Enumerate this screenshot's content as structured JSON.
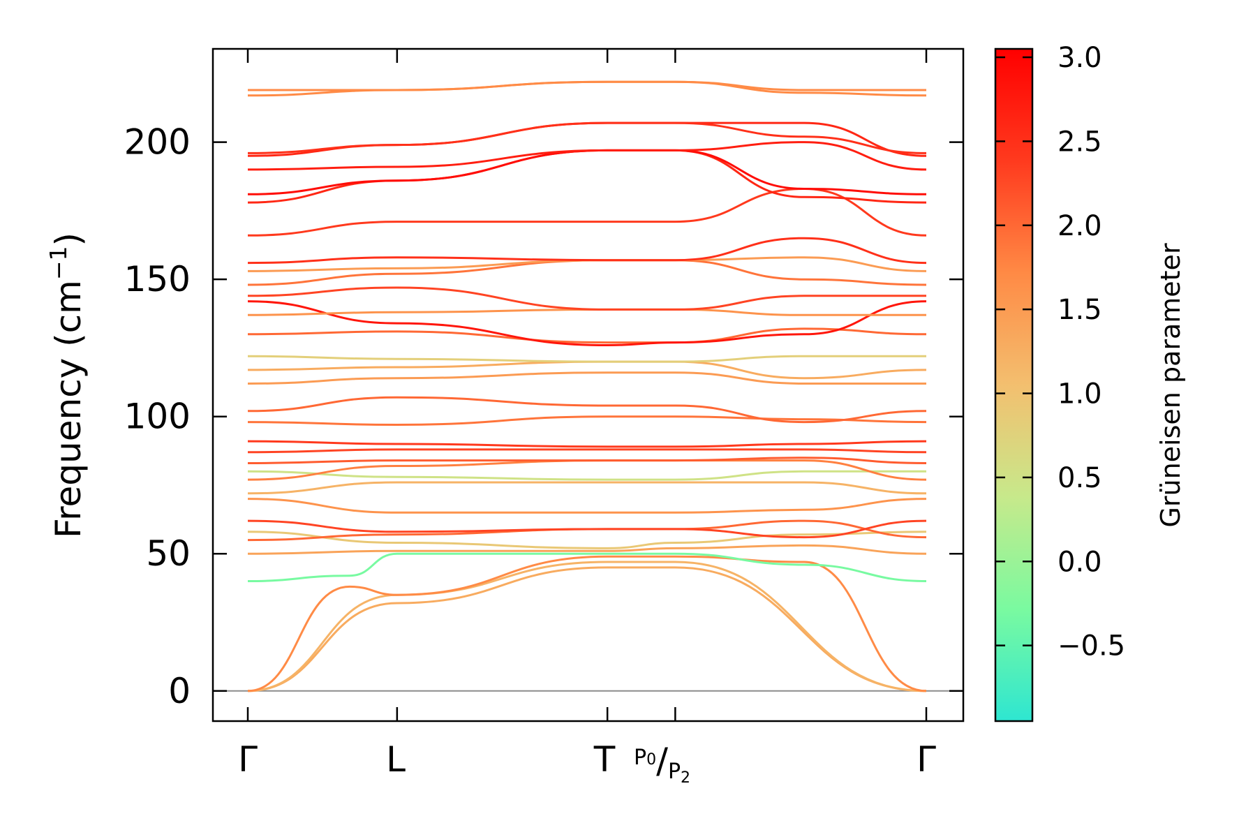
{
  "chart_data": {
    "type": "line",
    "title": "",
    "xlabel": "",
    "ylabel": "Frequency (cm",
    "ylabel_unit_sup": "−1",
    "ylabel_close": ")",
    "ylim": [
      -11,
      234
    ],
    "yticks": [
      0,
      50,
      100,
      150,
      200
    ],
    "ytick_labels": [
      "0",
      "50",
      "100",
      "150",
      "200"
    ],
    "x_segment_lengths": [
      0.22,
      0.31,
      0.1,
      0.37
    ],
    "high_symmetry_points": [
      {
        "label": "Γ",
        "x": 0
      },
      {
        "label": "L",
        "x": 0.22
      },
      {
        "label": "T",
        "x": 0.53
      },
      {
        "label": "P0/P2",
        "x": 0.63
      },
      {
        "label": "Γ",
        "x": 1.0
      }
    ],
    "special_labels": {
      "gamma_left": "Γ",
      "l": "L",
      "t": "T",
      "p0": "P",
      "p0_sub": "0",
      "slash": "/",
      "p2": "P",
      "p2_sub": "2",
      "gamma_right": "Γ"
    },
    "zero_line": {
      "y": 0,
      "color": "#8c8c8c"
    },
    "colorbar": {
      "label": "Grüneisen parameter",
      "range": [
        -0.95,
        3.05
      ],
      "ticks": [
        3.0,
        2.5,
        2.0,
        1.5,
        1.0,
        0.5,
        0.0,
        -0.5
      ],
      "tick_labels": [
        "3.0",
        "2.5",
        "2.0",
        "1.5",
        "1.0",
        "0.5",
        "0.0",
        "−0.5"
      ],
      "colormap": "rainbow-upper",
      "stops": [
        "#2ee6d1",
        "#7afaa0",
        "#c7e98b",
        "#f3bf6f",
        "#ff8a45",
        "#ff3a1e",
        "#ff0000"
      ]
    },
    "series": [
      {
        "g": 1.3,
        "points": [
          [
            0,
            0
          ],
          [
            0.22,
            32
          ],
          [
            0.53,
            45
          ],
          [
            0.63,
            45
          ],
          [
            1.0,
            0
          ]
        ]
      },
      {
        "g": 1.2,
        "points": [
          [
            0,
            0
          ],
          [
            0.22,
            35
          ],
          [
            0.53,
            47
          ],
          [
            0.63,
            47
          ],
          [
            1.0,
            0
          ]
        ]
      },
      {
        "g": 1.7,
        "points": [
          [
            0,
            0
          ],
          [
            0.15,
            38
          ],
          [
            0.22,
            35
          ],
          [
            0.53,
            49
          ],
          [
            0.63,
            49
          ],
          [
            0.82,
            47
          ],
          [
            1.0,
            0
          ]
        ]
      },
      {
        "g": -0.3,
        "points": [
          [
            0,
            40
          ],
          [
            0.15,
            42
          ],
          [
            0.22,
            50
          ],
          [
            0.53,
            50
          ],
          [
            0.63,
            50
          ],
          [
            0.82,
            46
          ],
          [
            1.0,
            40
          ]
        ]
      },
      {
        "g": 1.4,
        "points": [
          [
            0,
            50
          ],
          [
            0.22,
            51
          ],
          [
            0.53,
            51
          ],
          [
            0.63,
            52
          ],
          [
            0.82,
            53
          ],
          [
            1.0,
            50
          ]
        ]
      },
      {
        "g": 0.9,
        "points": [
          [
            0,
            58
          ],
          [
            0.22,
            54
          ],
          [
            0.53,
            52
          ],
          [
            0.63,
            54
          ],
          [
            0.82,
            57
          ],
          [
            1.0,
            58
          ]
        ]
      },
      {
        "g": 2.0,
        "points": [
          [
            0,
            55
          ],
          [
            0.22,
            57
          ],
          [
            0.53,
            59
          ],
          [
            0.63,
            59
          ],
          [
            0.82,
            62
          ],
          [
            1.0,
            56
          ]
        ]
      },
      {
        "g": 2.3,
        "points": [
          [
            0,
            62
          ],
          [
            0.22,
            58
          ],
          [
            0.53,
            59
          ],
          [
            0.63,
            59
          ],
          [
            0.82,
            56
          ],
          [
            1.0,
            62
          ]
        ]
      },
      {
        "g": 1.6,
        "points": [
          [
            0,
            70
          ],
          [
            0.22,
            65
          ],
          [
            0.53,
            65
          ],
          [
            0.63,
            65
          ],
          [
            0.82,
            66
          ],
          [
            1.0,
            70
          ]
        ]
      },
      {
        "g": 1.2,
        "points": [
          [
            0,
            72
          ],
          [
            0.22,
            76
          ],
          [
            0.53,
            76
          ],
          [
            0.63,
            76
          ],
          [
            0.82,
            76
          ],
          [
            1.0,
            72
          ]
        ]
      },
      {
        "g": 0.5,
        "points": [
          [
            0,
            80
          ],
          [
            0.22,
            78
          ],
          [
            0.53,
            77
          ],
          [
            0.63,
            77
          ],
          [
            0.82,
            80
          ],
          [
            1.0,
            80
          ]
        ]
      },
      {
        "g": 1.8,
        "points": [
          [
            0,
            77
          ],
          [
            0.22,
            82
          ],
          [
            0.53,
            84
          ],
          [
            0.63,
            84
          ],
          [
            0.82,
            84
          ],
          [
            1.0,
            77
          ]
        ]
      },
      {
        "g": 2.1,
        "points": [
          [
            0,
            83
          ],
          [
            0.22,
            84
          ],
          [
            0.53,
            84
          ],
          [
            0.63,
            84
          ],
          [
            0.82,
            85
          ],
          [
            1.0,
            83
          ]
        ]
      },
      {
        "g": 2.3,
        "points": [
          [
            0,
            87
          ],
          [
            0.22,
            88
          ],
          [
            0.53,
            88
          ],
          [
            0.63,
            88
          ],
          [
            0.82,
            88
          ],
          [
            1.0,
            87
          ]
        ]
      },
      {
        "g": 2.4,
        "points": [
          [
            0,
            91
          ],
          [
            0.22,
            90
          ],
          [
            0.53,
            89
          ],
          [
            0.63,
            89
          ],
          [
            0.82,
            90
          ],
          [
            1.0,
            91
          ]
        ]
      },
      {
        "g": 1.9,
        "points": [
          [
            0,
            98
          ],
          [
            0.22,
            97
          ],
          [
            0.53,
            100
          ],
          [
            0.63,
            100
          ],
          [
            0.82,
            99
          ],
          [
            1.0,
            98
          ]
        ]
      },
      {
        "g": 2.0,
        "points": [
          [
            0,
            102
          ],
          [
            0.22,
            107
          ],
          [
            0.53,
            104
          ],
          [
            0.63,
            104
          ],
          [
            0.82,
            98
          ],
          [
            1.0,
            102
          ]
        ]
      },
      {
        "g": 1.5,
        "points": [
          [
            0,
            112
          ],
          [
            0.22,
            114
          ],
          [
            0.53,
            116
          ],
          [
            0.63,
            116
          ],
          [
            0.82,
            112
          ],
          [
            1.0,
            112
          ]
        ]
      },
      {
        "g": 1.3,
        "points": [
          [
            0,
            117
          ],
          [
            0.22,
            118
          ],
          [
            0.53,
            120
          ],
          [
            0.63,
            120
          ],
          [
            0.82,
            114
          ],
          [
            1.0,
            117
          ]
        ]
      },
      {
        "g": 0.8,
        "points": [
          [
            0,
            122
          ],
          [
            0.22,
            121
          ],
          [
            0.53,
            120
          ],
          [
            0.63,
            120
          ],
          [
            0.82,
            122
          ],
          [
            1.0,
            122
          ]
        ]
      },
      {
        "g": 2.0,
        "points": [
          [
            0,
            130
          ],
          [
            0.22,
            131
          ],
          [
            0.53,
            127
          ],
          [
            0.63,
            127
          ],
          [
            0.82,
            132
          ],
          [
            1.0,
            130
          ]
        ]
      },
      {
        "g": 2.8,
        "points": [
          [
            0,
            142
          ],
          [
            0.22,
            134
          ],
          [
            0.53,
            126
          ],
          [
            0.63,
            127
          ],
          [
            0.82,
            130
          ],
          [
            1.0,
            142
          ]
        ]
      },
      {
        "g": 1.6,
        "points": [
          [
            0,
            137
          ],
          [
            0.22,
            138
          ],
          [
            0.53,
            139
          ],
          [
            0.63,
            139
          ],
          [
            0.82,
            137
          ],
          [
            1.0,
            137
          ]
        ]
      },
      {
        "g": 2.3,
        "points": [
          [
            0,
            144
          ],
          [
            0.22,
            147
          ],
          [
            0.53,
            139
          ],
          [
            0.63,
            139
          ],
          [
            0.82,
            144
          ],
          [
            1.0,
            144
          ]
        ]
      },
      {
        "g": 1.9,
        "points": [
          [
            0,
            148
          ],
          [
            0.22,
            152
          ],
          [
            0.53,
            157
          ],
          [
            0.63,
            157
          ],
          [
            0.82,
            150
          ],
          [
            1.0,
            148
          ]
        ]
      },
      {
        "g": 1.5,
        "points": [
          [
            0,
            153
          ],
          [
            0.22,
            154
          ],
          [
            0.53,
            157
          ],
          [
            0.63,
            157
          ],
          [
            0.82,
            158
          ],
          [
            1.0,
            153
          ]
        ]
      },
      {
        "g": 2.5,
        "points": [
          [
            0,
            156
          ],
          [
            0.22,
            158
          ],
          [
            0.53,
            157
          ],
          [
            0.63,
            157
          ],
          [
            0.82,
            165
          ],
          [
            1.0,
            156
          ]
        ]
      },
      {
        "g": 2.4,
        "points": [
          [
            0,
            166
          ],
          [
            0.22,
            171
          ],
          [
            0.53,
            171
          ],
          [
            0.63,
            171
          ],
          [
            0.82,
            183
          ],
          [
            1.0,
            166
          ]
        ]
      },
      {
        "g": 2.6,
        "points": [
          [
            0,
            178
          ],
          [
            0.22,
            186
          ],
          [
            0.53,
            197
          ],
          [
            0.63,
            197
          ],
          [
            0.82,
            180
          ],
          [
            1.0,
            178
          ]
        ]
      },
      {
        "g": 2.9,
        "points": [
          [
            0,
            181
          ],
          [
            0.22,
            186
          ],
          [
            0.53,
            197
          ],
          [
            0.63,
            197
          ],
          [
            0.82,
            183
          ],
          [
            1.0,
            181
          ]
        ]
      },
      {
        "g": 2.7,
        "points": [
          [
            0,
            190
          ],
          [
            0.22,
            191
          ],
          [
            0.53,
            197
          ],
          [
            0.63,
            197
          ],
          [
            0.82,
            200
          ],
          [
            1.0,
            190
          ]
        ]
      },
      {
        "g": 2.6,
        "points": [
          [
            0,
            195
          ],
          [
            0.22,
            199
          ],
          [
            0.53,
            207
          ],
          [
            0.63,
            207
          ],
          [
            0.82,
            207
          ],
          [
            1.0,
            195
          ]
        ]
      },
      {
        "g": 2.5,
        "points": [
          [
            0,
            196
          ],
          [
            0.22,
            199
          ],
          [
            0.53,
            207
          ],
          [
            0.63,
            207
          ],
          [
            0.82,
            202
          ],
          [
            1.0,
            196
          ]
        ]
      },
      {
        "g": 1.7,
        "points": [
          [
            0,
            217
          ],
          [
            0.22,
            219
          ],
          [
            0.53,
            222
          ],
          [
            0.63,
            222
          ],
          [
            0.82,
            218
          ],
          [
            1.0,
            217
          ]
        ]
      },
      {
        "g": 1.7,
        "points": [
          [
            0,
            219
          ],
          [
            0.22,
            219
          ],
          [
            0.53,
            222
          ],
          [
            0.63,
            222
          ],
          [
            0.82,
            219
          ],
          [
            1.0,
            219
          ]
        ]
      }
    ]
  }
}
